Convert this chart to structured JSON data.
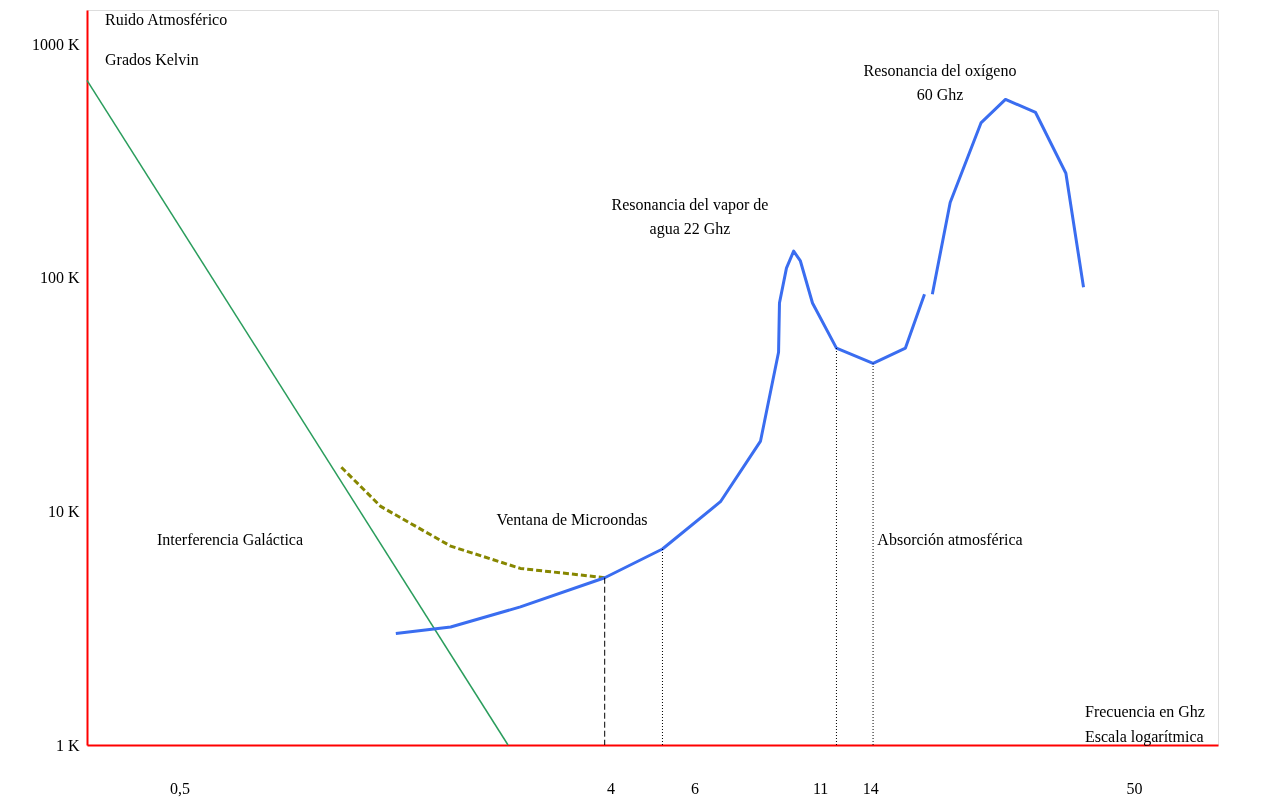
{
  "chart_data": {
    "type": "line",
    "xlabel": "Frecuencia en Ghz\nEscala logarítmica",
    "ylabel": "Ruido Atmosférico\nGrados Kelvin",
    "log": "xy",
    "grid": false,
    "marker": "none",
    "xlim": [
      0.32,
      75
    ],
    "xticks": [
      {
        "value": 0.5,
        "label": "0,5"
      },
      4,
      6,
      11,
      14,
      50
    ],
    "ylim": [
      1,
      1400
    ],
    "yticks": [
      {
        "value": 1,
        "label": "1 K"
      },
      {
        "value": 10,
        "label": "10 K"
      },
      {
        "value": 100,
        "label": "100 K"
      },
      {
        "value": 1000,
        "label": "1000 K"
      }
    ],
    "series": [
      {
        "color": "#2a9d5c",
        "line_style": "solid",
        "x": [
          0.32,
          2.44
        ],
        "values": [
          700,
          1
        ]
      },
      {
        "color": "#878700",
        "line_style": "dashed",
        "x": [
          1.09,
          1.32,
          1.85,
          2.59,
          3.89
        ],
        "values": [
          15.5,
          10.5,
          7.1,
          5.7,
          5.2
        ]
      },
      {
        "color": "#3a6df0",
        "line_style": "solid",
        "x": [
          1.42,
          1.85,
          2.59,
          3.89,
          5.14,
          6.8,
          8.25,
          9.0,
          9.04,
          9.35,
          9.68,
          10.0,
          10.6,
          11.9,
          14.2,
          16.6,
          18.2
        ],
        "values": [
          3.0,
          3.2,
          3.9,
          5.2,
          6.9,
          11,
          20,
          48,
          78,
          110,
          130,
          118,
          78,
          50,
          43,
          50,
          85
        ]
      },
      {
        "color": "#3a6df0",
        "line_style": "solid",
        "x": [
          18.9,
          20.6,
          23.9,
          26.9,
          31.1,
          36.0,
          39.2
        ],
        "values": [
          85,
          210,
          460,
          580,
          510,
          280,
          91
        ]
      },
      {
        "color": "#000000",
        "line_style": "dashed",
        "x": [
          3.89,
          3.89
        ],
        "values": [
          1,
          5.2
        ]
      },
      {
        "color": "#000000",
        "line_style": "dotted",
        "x": [
          5.14,
          5.14
        ],
        "values": [
          1,
          6.9
        ]
      },
      {
        "color": "#000000",
        "line_style": "dotted",
        "x": [
          11.9,
          11.9
        ],
        "values": [
          1,
          50
        ]
      },
      {
        "color": "#000000",
        "line_style": "dotted",
        "x": [
          14.2,
          14.2
        ],
        "values": [
          1,
          43
        ]
      }
    ],
    "annotations": [
      "Interferencia Galáctica",
      "Ventana de Microondas",
      "Absorción atmosférica",
      "Resonancia del vapor de\nagua 22 Ghz",
      "Resonancia del oxígeno\n60 Ghz"
    ]
  }
}
